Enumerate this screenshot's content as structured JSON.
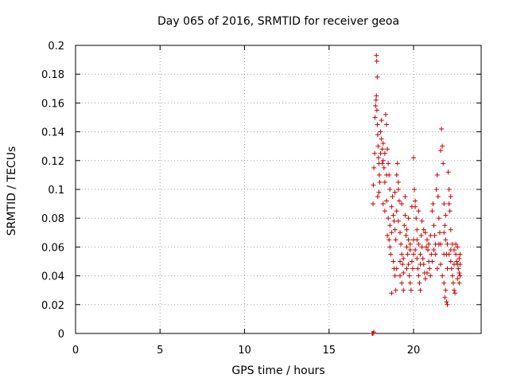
{
  "chart_data": {
    "type": "scatter",
    "title": "Day 065 of 2016, SRMTID for receiver geoa",
    "xlabel": "GPS time / hours",
    "ylabel": "SRMTID / TECUs",
    "xlim": [
      0,
      24
    ],
    "ylim": [
      0,
      0.2
    ],
    "x_ticks": [
      0,
      5,
      10,
      15,
      20
    ],
    "x_tick_labels": [
      "0",
      "5",
      "10",
      "15",
      "20"
    ],
    "y_ticks": [
      0,
      0.02,
      0.04,
      0.06,
      0.08,
      0.1,
      0.12,
      0.14,
      0.16,
      0.18,
      0.2
    ],
    "y_tick_labels": [
      "0",
      "0.02",
      "0.04",
      "0.06",
      "0.08",
      "0.1",
      "0.12",
      "0.14",
      "0.16",
      "0.18",
      "0.2"
    ],
    "grid": true,
    "marker": "+",
    "color": "#cc0000",
    "series": [
      {
        "name": "SRMTID",
        "points": [
          [
            17.55,
            0.0
          ],
          [
            17.6,
            0.0
          ],
          [
            17.65,
            0.001
          ],
          [
            17.6,
            0.09
          ],
          [
            17.62,
            0.103
          ],
          [
            17.65,
            0.115
          ],
          [
            17.7,
            0.125
          ],
          [
            17.72,
            0.15
          ],
          [
            17.75,
            0.158
          ],
          [
            17.78,
            0.162
          ],
          [
            17.8,
            0.193
          ],
          [
            17.82,
            0.189
          ],
          [
            17.85,
            0.178
          ],
          [
            17.8,
            0.165
          ],
          [
            17.83,
            0.155
          ],
          [
            17.86,
            0.145
          ],
          [
            17.88,
            0.138
          ],
          [
            17.9,
            0.13
          ],
          [
            17.92,
            0.122
          ],
          [
            17.95,
            0.118
          ],
          [
            17.97,
            0.11
          ],
          [
            18.0,
            0.105
          ],
          [
            17.88,
            0.095
          ],
          [
            17.95,
            0.098
          ],
          [
            18.05,
            0.14
          ],
          [
            18.1,
            0.135
          ],
          [
            18.15,
            0.128
          ],
          [
            18.2,
            0.12
          ],
          [
            18.25,
            0.115
          ],
          [
            18.3,
            0.105
          ],
          [
            18.1,
            0.148
          ],
          [
            18.35,
            0.152
          ],
          [
            18.4,
            0.145
          ],
          [
            18.2,
            0.132
          ],
          [
            18.3,
            0.125
          ],
          [
            18.45,
            0.128
          ],
          [
            18.5,
            0.118
          ],
          [
            18.55,
            0.11
          ],
          [
            18.2,
            0.09
          ],
          [
            18.3,
            0.085
          ],
          [
            18.4,
            0.092
          ],
          [
            18.5,
            0.08
          ],
          [
            18.6,
            0.075
          ],
          [
            18.7,
            0.07
          ],
          [
            18.45,
            0.068
          ],
          [
            18.55,
            0.065
          ],
          [
            18.6,
            0.06
          ],
          [
            18.65,
            0.055
          ],
          [
            18.7,
            0.088
          ],
          [
            18.75,
            0.095
          ],
          [
            18.8,
            0.082
          ],
          [
            18.85,
            0.078
          ],
          [
            18.9,
            0.072
          ],
          [
            18.95,
            0.065
          ],
          [
            18.8,
            0.05
          ],
          [
            18.85,
            0.045
          ],
          [
            18.9,
            0.04
          ],
          [
            18.95,
            0.03
          ],
          [
            18.7,
            0.028
          ],
          [
            19.0,
            0.11
          ],
          [
            19.05,
            0.118
          ],
          [
            19.1,
            0.1
          ],
          [
            19.15,
            0.092
          ],
          [
            19.0,
            0.085
          ],
          [
            19.1,
            0.078
          ],
          [
            19.2,
            0.07
          ],
          [
            19.25,
            0.062
          ],
          [
            19.3,
            0.055
          ],
          [
            19.35,
            0.048
          ],
          [
            19.4,
            0.042
          ],
          [
            19.2,
            0.05
          ],
          [
            19.3,
            0.035
          ],
          [
            19.4,
            0.03
          ],
          [
            19.45,
            0.075
          ],
          [
            19.5,
            0.082
          ],
          [
            19.55,
            0.068
          ],
          [
            19.6,
            0.06
          ],
          [
            19.65,
            0.055
          ],
          [
            19.7,
            0.048
          ],
          [
            19.75,
            0.04
          ],
          [
            19.8,
            0.035
          ],
          [
            19.85,
            0.03
          ],
          [
            19.6,
            0.072
          ],
          [
            19.7,
            0.065
          ],
          [
            19.8,
            0.058
          ],
          [
            19.9,
            0.05
          ],
          [
            19.95,
            0.045
          ],
          [
            20.0,
            0.122
          ],
          [
            20.05,
            0.1
          ],
          [
            20.1,
            0.088
          ],
          [
            20.15,
            0.08
          ],
          [
            20.2,
            0.072
          ],
          [
            20.0,
            0.065
          ],
          [
            20.1,
            0.058
          ],
          [
            20.2,
            0.052
          ],
          [
            20.25,
            0.045
          ],
          [
            20.3,
            0.04
          ],
          [
            20.35,
            0.035
          ],
          [
            20.4,
            0.03
          ],
          [
            20.3,
            0.062
          ],
          [
            20.4,
            0.055
          ],
          [
            20.45,
            0.068
          ],
          [
            20.5,
            0.06
          ],
          [
            20.55,
            0.052
          ],
          [
            20.6,
            0.048
          ],
          [
            20.65,
            0.042
          ],
          [
            20.7,
            0.038
          ],
          [
            20.75,
            0.06
          ],
          [
            20.8,
            0.065
          ],
          [
            20.85,
            0.058
          ],
          [
            20.9,
            0.05
          ],
          [
            20.95,
            0.045
          ],
          [
            21.0,
            0.04
          ],
          [
            21.05,
            0.055
          ],
          [
            21.1,
            0.085
          ],
          [
            21.15,
            0.09
          ],
          [
            21.2,
            0.075
          ],
          [
            21.25,
            0.068
          ],
          [
            21.3,
            0.062
          ],
          [
            21.35,
            0.1
          ],
          [
            21.4,
            0.11
          ],
          [
            21.45,
            0.095
          ],
          [
            21.5,
            0.08
          ],
          [
            21.55,
            0.07
          ],
          [
            21.6,
            0.127
          ],
          [
            21.65,
            0.142
          ],
          [
            21.7,
            0.13
          ],
          [
            21.75,
            0.118
          ],
          [
            21.8,
            0.09
          ],
          [
            21.85,
            0.075
          ],
          [
            21.9,
            0.065
          ],
          [
            21.95,
            0.055
          ],
          [
            21.6,
            0.048
          ],
          [
            21.7,
            0.04
          ],
          [
            21.8,
            0.035
          ],
          [
            21.9,
            0.03
          ],
          [
            21.85,
            0.025
          ],
          [
            21.95,
            0.022
          ],
          [
            22.0,
            0.02
          ],
          [
            22.05,
            0.112
          ],
          [
            22.1,
            0.1
          ],
          [
            22.15,
            0.085
          ],
          [
            22.2,
            0.072
          ],
          [
            22.0,
            0.062
          ],
          [
            22.1,
            0.055
          ],
          [
            22.2,
            0.05
          ],
          [
            22.25,
            0.045
          ],
          [
            22.3,
            0.04
          ],
          [
            22.35,
            0.035
          ],
          [
            22.4,
            0.03
          ],
          [
            22.45,
            0.028
          ],
          [
            22.3,
            0.062
          ],
          [
            22.4,
            0.058
          ],
          [
            22.5,
            0.055
          ],
          [
            22.55,
            0.05
          ],
          [
            22.6,
            0.048
          ],
          [
            22.65,
            0.045
          ],
          [
            22.7,
            0.042
          ],
          [
            22.75,
            0.04
          ],
          [
            22.5,
            0.062
          ],
          [
            22.6,
            0.06
          ],
          [
            22.7,
            0.052
          ],
          [
            22.75,
            0.048
          ],
          [
            22.2,
            0.095
          ],
          [
            22.1,
            0.09
          ],
          [
            21.9,
            0.082
          ],
          [
            21.8,
            0.07
          ],
          [
            21.5,
            0.062
          ],
          [
            21.3,
            0.055
          ],
          [
            21.1,
            0.05
          ],
          [
            20.9,
            0.062
          ],
          [
            20.7,
            0.07
          ],
          [
            20.5,
            0.078
          ],
          [
            20.3,
            0.085
          ],
          [
            20.1,
            0.092
          ],
          [
            19.9,
            0.088
          ],
          [
            19.7,
            0.08
          ],
          [
            19.5,
            0.095
          ],
          [
            19.3,
            0.09
          ],
          [
            19.1,
            0.105
          ],
          [
            18.9,
            0.098
          ],
          [
            18.6,
            0.1
          ],
          [
            18.4,
            0.11
          ],
          [
            18.15,
            0.118
          ],
          [
            18.05,
            0.125
          ],
          [
            19.0,
            0.045
          ],
          [
            19.2,
            0.04
          ],
          [
            19.4,
            0.052
          ],
          [
            19.6,
            0.045
          ],
          [
            19.8,
            0.062
          ],
          [
            20.0,
            0.055
          ],
          [
            20.2,
            0.065
          ],
          [
            20.4,
            0.048
          ],
          [
            20.6,
            0.072
          ],
          [
            20.8,
            0.042
          ],
          [
            21.0,
            0.068
          ],
          [
            21.2,
            0.058
          ],
          [
            21.4,
            0.045
          ],
          [
            21.6,
            0.062
          ],
          [
            21.8,
            0.055
          ],
          [
            22.0,
            0.045
          ],
          [
            22.2,
            0.058
          ],
          [
            22.4,
            0.048
          ],
          [
            22.6,
            0.038
          ],
          [
            22.7,
            0.035
          ],
          [
            22.75,
            0.055
          ]
        ]
      }
    ]
  }
}
